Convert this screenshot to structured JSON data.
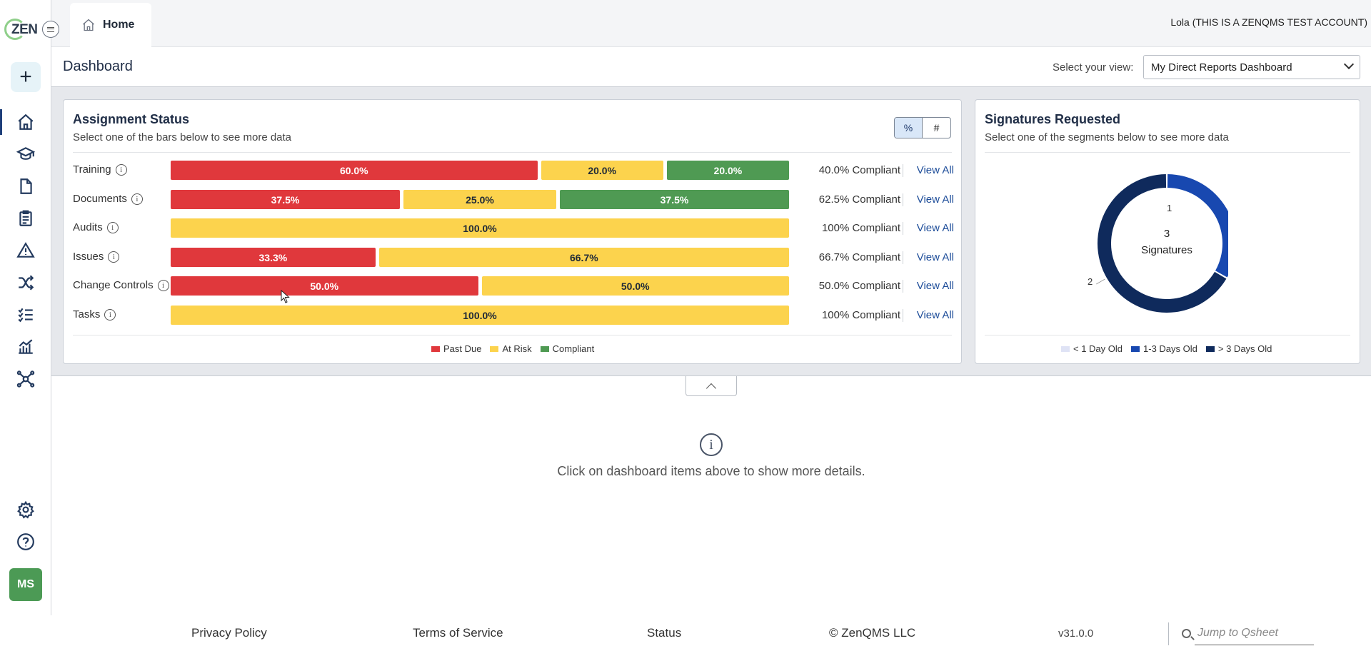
{
  "app": {
    "logo_text": "ZEN",
    "tab_home": "Home",
    "user": "Lola (THIS IS A ZENQMS TEST ACCOUNT)",
    "user_initials": "MS"
  },
  "sidebar": {
    "items": [
      {
        "icon": "home-icon",
        "active": true
      },
      {
        "icon": "graduation-cap-icon"
      },
      {
        "icon": "document-icon"
      },
      {
        "icon": "clipboard-icon"
      },
      {
        "icon": "warning-icon"
      },
      {
        "icon": "shuffle-icon"
      },
      {
        "icon": "checklist-icon"
      },
      {
        "icon": "chart-icon"
      },
      {
        "icon": "network-icon"
      },
      {
        "icon": "gear-icon"
      },
      {
        "icon": "help-icon"
      }
    ]
  },
  "dashboard": {
    "title": "Dashboard",
    "view_label": "Select your view:",
    "view_value": "My Direct Reports Dashboard"
  },
  "assignment": {
    "title": "Assignment Status",
    "subtitle": "Select one of the bars below to see more data",
    "toggle_pct": "%",
    "toggle_num": "#",
    "view_all": "View All",
    "rows": [
      {
        "label": "Training",
        "past_due": 60.0,
        "at_risk": 20.0,
        "compliant": 20.0,
        "pd_text": "60.0%",
        "ar_text": "20.0%",
        "cp_text": "20.0%",
        "compliance": "40.0% Compliant"
      },
      {
        "label": "Documents",
        "past_due": 37.5,
        "at_risk": 25.0,
        "compliant": 37.5,
        "pd_text": "37.5%",
        "ar_text": "25.0%",
        "cp_text": "37.5%",
        "compliance": "62.5% Compliant"
      },
      {
        "label": "Audits",
        "past_due": 0,
        "at_risk": 100.0,
        "compliant": 0,
        "pd_text": "",
        "ar_text": "100.0%",
        "cp_text": "",
        "compliance": "100% Compliant"
      },
      {
        "label": "Issues",
        "past_due": 33.3,
        "at_risk": 66.7,
        "compliant": 0,
        "pd_text": "33.3%",
        "ar_text": "66.7%",
        "cp_text": "",
        "compliance": "66.7% Compliant"
      },
      {
        "label": "Change Controls",
        "past_due": 50.0,
        "at_risk": 50.0,
        "compliant": 0,
        "pd_text": "50.0%",
        "ar_text": "50.0%",
        "cp_text": "",
        "compliance": "50.0% Compliant"
      },
      {
        "label": "Tasks",
        "past_due": 0,
        "at_risk": 100.0,
        "compliant": 0,
        "pd_text": "",
        "ar_text": "100.0%",
        "cp_text": "",
        "compliance": "100% Compliant"
      }
    ],
    "legend": {
      "past_due": "Past Due",
      "at_risk": "At Risk",
      "compliant": "Compliant"
    }
  },
  "signatures": {
    "title": "Signatures Requested",
    "subtitle": "Select one of the segments below to see more data",
    "center_count": "3",
    "center_label": "Signatures",
    "legend": {
      "lt1": "< 1 Day Old",
      "d13": "1-3 Days Old",
      "gt3": "> 3 Days Old"
    }
  },
  "chart_data": {
    "type": "pie",
    "categories": [
      "< 1 Day Old",
      "1-3 Days Old",
      "> 3 Days Old"
    ],
    "values": [
      0,
      1,
      2
    ],
    "colors": [
      "#dfe3f5",
      "#1848b0",
      "#0f2a5c"
    ]
  },
  "colors": {
    "past_due": "#e0383c",
    "at_risk": "#fcd34d",
    "compliant": "#4f9a53"
  },
  "details": {
    "message": "Click on dashboard items above to show more details."
  },
  "footer": {
    "privacy": "Privacy Policy",
    "terms": "Terms of Service",
    "status": "Status",
    "copyright": "© ZenQMS LLC",
    "version": "v31.0.0",
    "qsheet_placeholder": "Jump to Qsheet"
  }
}
